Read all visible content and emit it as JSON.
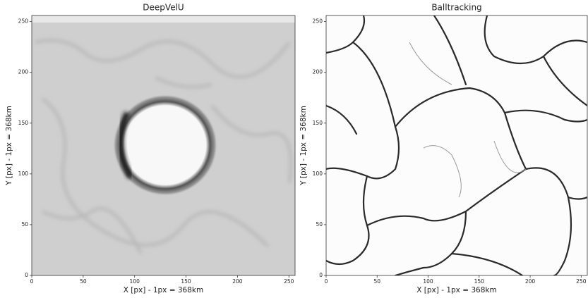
{
  "chart_data": [
    {
      "type": "image",
      "title": "DeepVelU",
      "xlabel": "X [px] - 1px = 368km",
      "ylabel": "Y [px] - 1px = 368km",
      "xlim": [
        0,
        256
      ],
      "ylim": [
        0,
        256
      ],
      "xticks": [
        0,
        50,
        100,
        150,
        200,
        250
      ],
      "yticks": [
        0,
        50,
        100,
        150,
        200,
        250
      ]
    },
    {
      "type": "image",
      "title": "Balltracking",
      "xlabel": "X [px] - 1px = 368km",
      "ylabel": "Y [px] - 1px = 368km",
      "xlim": [
        0,
        256
      ],
      "ylim": [
        0,
        256
      ],
      "xticks": [
        0,
        50,
        100,
        150,
        200,
        250
      ],
      "yticks": [
        0,
        50,
        100,
        150,
        200,
        250
      ]
    }
  ]
}
